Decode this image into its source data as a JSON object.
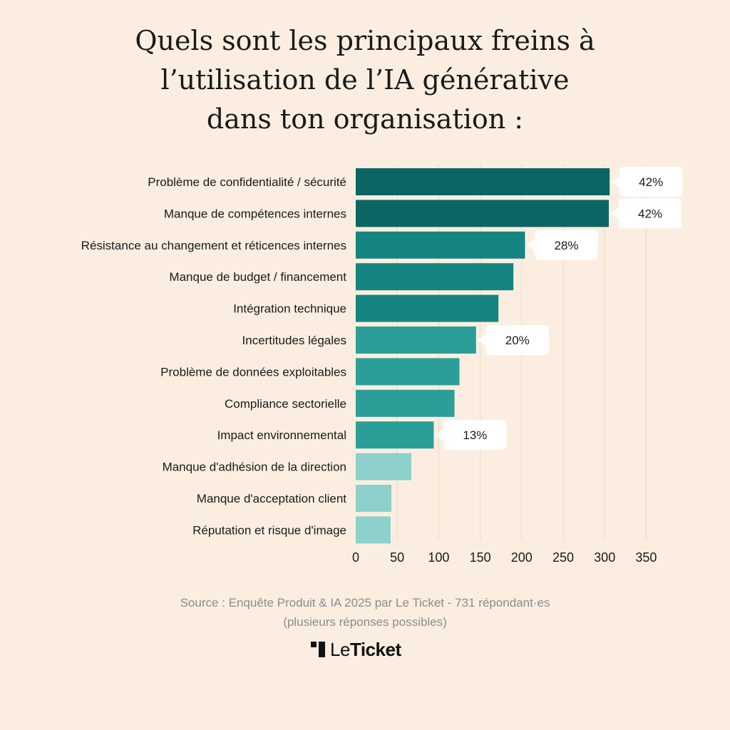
{
  "title_lines": [
    "Quels sont les principaux freins à",
    "l’utilisation de l’IA générative",
    "dans ton organisation :"
  ],
  "chart_data": {
    "type": "bar",
    "orientation": "horizontal",
    "categories": [
      "Problème de confidentialité / sécurité",
      "Manque de compétences internes",
      "Résistance au changement et réticences internes",
      "Manque de budget / financement",
      "Intégration technique",
      "Incertitudes légales",
      "Problème de données exploitables",
      "Compliance sectorielle",
      "Impact environnemental",
      "Manque d'adhésion de la direction",
      "Manque d'acceptation client",
      "Réputation et risque d'image"
    ],
    "values": [
      306,
      305,
      204,
      190,
      172,
      145,
      125,
      119,
      94,
      67,
      43,
      42
    ],
    "bar_colors": [
      "#0b6663",
      "#0b6663",
      "#168480",
      "#168480",
      "#168480",
      "#2a9e97",
      "#2a9e97",
      "#2a9e97",
      "#2a9e97",
      "#8dd0cc",
      "#8dd0cc",
      "#8dd0cc"
    ],
    "callouts": [
      {
        "index": 0,
        "label": "42%"
      },
      {
        "index": 1,
        "label": "42%"
      },
      {
        "index": 2,
        "label": "28%"
      },
      {
        "index": 5,
        "label": "20%"
      },
      {
        "index": 8,
        "label": "13%"
      }
    ],
    "xticks": [
      0,
      50,
      100,
      150,
      200,
      250,
      300,
      350
    ],
    "xlim": [
      0,
      350
    ],
    "grid": "vertical",
    "xlabel": "",
    "ylabel": ""
  },
  "source_line1": "Source : Enquête Produit & IA 2025 par Le Ticket - 731 répondant·es",
  "source_line2": "(plusieurs réponses possibles)",
  "logo": {
    "light": "Le",
    "bold": "Ticket"
  },
  "colors": {
    "background": "#fbeee0",
    "gridline": "#ead9c6",
    "callout_bg": "#ffffff",
    "text": "#1a1a1a",
    "muted": "#8c8c8c"
  }
}
